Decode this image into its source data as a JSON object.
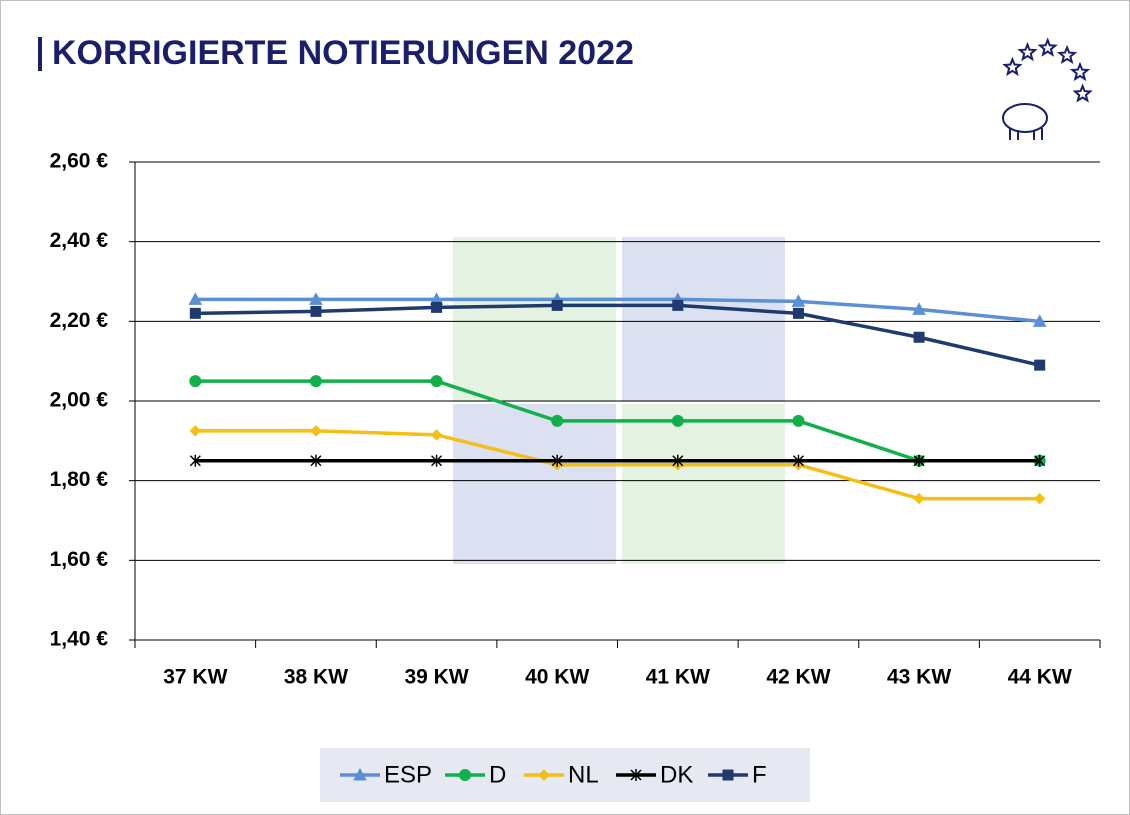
{
  "chart_data": {
    "type": "line",
    "title": "KORRIGIERTE NOTIERUNGEN 2022",
    "categories": [
      "37 KW",
      "38 KW",
      "39 KW",
      "40 KW",
      "41 KW",
      "42 KW",
      "43 KW",
      "44 KW"
    ],
    "series": [
      {
        "name": "ESP",
        "color": "#5b8fd6",
        "marker": "triangle",
        "values": [
          2.255,
          2.255,
          2.255,
          2.255,
          2.255,
          2.25,
          2.23,
          2.2
        ]
      },
      {
        "name": "D",
        "color": "#11b04a",
        "marker": "circle",
        "values": [
          2.05,
          2.05,
          2.05,
          1.95,
          1.95,
          1.95,
          1.85,
          1.85
        ]
      },
      {
        "name": "NL",
        "color": "#f5be14",
        "marker": "diamond",
        "values": [
          1.925,
          1.925,
          1.915,
          1.84,
          1.84,
          1.84,
          1.755,
          1.755
        ]
      },
      {
        "name": "DK",
        "color": "#000000",
        "marker": "star",
        "values": [
          1.85,
          1.85,
          1.85,
          1.85,
          1.85,
          1.85,
          1.85,
          1.85
        ]
      },
      {
        "name": "F",
        "color": "#1f3b6e",
        "marker": "square",
        "values": [
          2.22,
          2.225,
          2.235,
          2.24,
          2.24,
          2.22,
          2.16,
          2.09
        ]
      }
    ],
    "ylim": [
      1.4,
      2.6
    ],
    "yticks": [
      {
        "value": 1.4,
        "label": "1,40 €"
      },
      {
        "value": 1.6,
        "label": "1,60 €"
      },
      {
        "value": 1.8,
        "label": "1,80 €"
      },
      {
        "value": 2.0,
        "label": "2,00 €"
      },
      {
        "value": 2.2,
        "label": "2,20 €"
      },
      {
        "value": 2.4,
        "label": "2,40 €"
      },
      {
        "value": 2.6,
        "label": "2,60 €"
      }
    ],
    "grid": true,
    "legend": "bottom"
  }
}
